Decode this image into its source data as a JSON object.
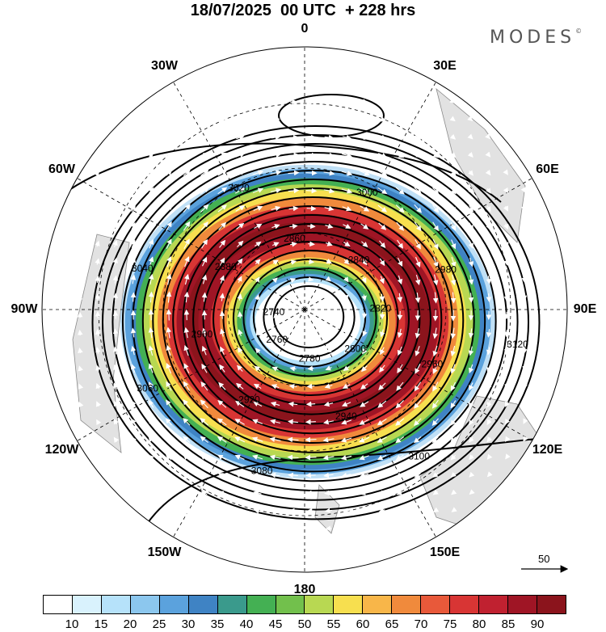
{
  "title": "18/07/2025  00 UTC  + 228 hrs",
  "brand": "MODES",
  "brand_mark": "©",
  "longitude_labels": [
    {
      "key": "n0",
      "text": "0",
      "lon": 0
    },
    {
      "key": "e30",
      "text": "30E",
      "lon": 30
    },
    {
      "key": "e60",
      "text": "60E",
      "lon": 60
    },
    {
      "key": "e90",
      "text": "90E",
      "lon": 90
    },
    {
      "key": "e120",
      "text": "120E",
      "lon": 120
    },
    {
      "key": "e150",
      "text": "150E",
      "lon": 150
    },
    {
      "key": "s180",
      "text": "180",
      "lon": 180
    },
    {
      "key": "w150",
      "text": "150W",
      "lon": -150
    },
    {
      "key": "w120",
      "text": "120W",
      "lon": -120
    },
    {
      "key": "w90",
      "text": "90W",
      "lon": -90
    },
    {
      "key": "w60",
      "text": "60W",
      "lon": -60
    },
    {
      "key": "w30",
      "text": "30W",
      "lon": -30
    }
  ],
  "contour_labels": [
    "3120",
    "3100",
    "3080",
    "3060",
    "3040",
    "3020",
    "3000",
    "2980",
    "2960",
    "2940",
    "2920",
    "2900",
    "2880",
    "2860",
    "2840",
    "2820",
    "2800",
    "2780",
    "2760",
    "2740"
  ],
  "reference_vector": {
    "label": "50"
  },
  "colorbar": {
    "colors": [
      "#ffffff",
      "#d9f2fd",
      "#b6e2fa",
      "#8cc7ee",
      "#5ba2dd",
      "#3f83c4",
      "#3a9a8c",
      "#44b053",
      "#72c04c",
      "#b8d852",
      "#f7df4f",
      "#f8b649",
      "#f08a3c",
      "#e8593a",
      "#d83534",
      "#c02130",
      "#9f1525",
      "#8b141c"
    ],
    "ticks": [
      "10",
      "15",
      "20",
      "25",
      "30",
      "35",
      "40",
      "45",
      "50",
      "55",
      "60",
      "65",
      "70",
      "75",
      "80",
      "85",
      "90"
    ]
  }
}
